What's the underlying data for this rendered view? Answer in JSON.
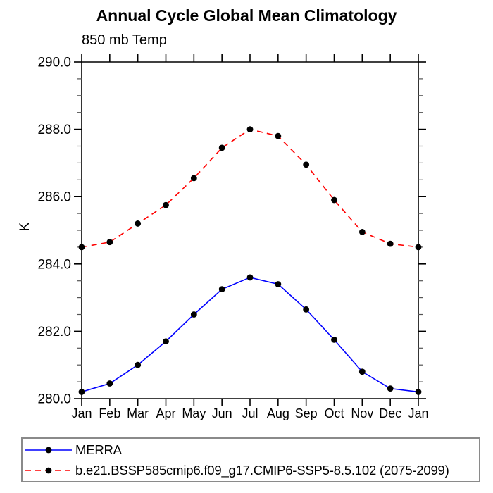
{
  "chart_data": {
    "type": "line",
    "title": "Annual Cycle Global Mean Climatology",
    "subtitle": "850 mb Temp",
    "ylabel": "K",
    "x_categories": [
      "Jan",
      "Feb",
      "Mar",
      "Apr",
      "May",
      "Jun",
      "Jul",
      "Aug",
      "Sep",
      "Oct",
      "Nov",
      "Dec",
      "Jan"
    ],
    "ylim": [
      280.0,
      290.0
    ],
    "ytick_major_values": [
      290,
      288,
      286,
      284,
      282,
      280
    ],
    "ytick_major_labels": [
      "290.0",
      "288.0",
      "286.0",
      "284.0",
      "282.0",
      "280.0"
    ],
    "ytick_minor_step": 0.5,
    "grid": false,
    "legend_position": "bottom-left-outside",
    "axis_color": "#000000",
    "marker_color": "#000000",
    "background_color": "#ffffff",
    "series": [
      {
        "name": "MERRA",
        "color": "#0000ff",
        "line_style": "solid",
        "marker": "filled-circle",
        "values": [
          280.2,
          280.45,
          281.0,
          281.7,
          282.5,
          283.25,
          283.6,
          283.4,
          282.65,
          281.75,
          280.8,
          280.3,
          280.2
        ]
      },
      {
        "name": "b.e21.BSSP585cmip6.f09_g17.CMIP6-SSP5-8.5.102 (2075-2099)",
        "color": "#ff0000",
        "line_style": "dashed",
        "marker": "filled-circle",
        "values": [
          284.5,
          284.65,
          285.2,
          285.75,
          286.55,
          287.45,
          288.0,
          287.8,
          286.95,
          285.9,
          284.95,
          284.6,
          284.5
        ]
      }
    ]
  }
}
